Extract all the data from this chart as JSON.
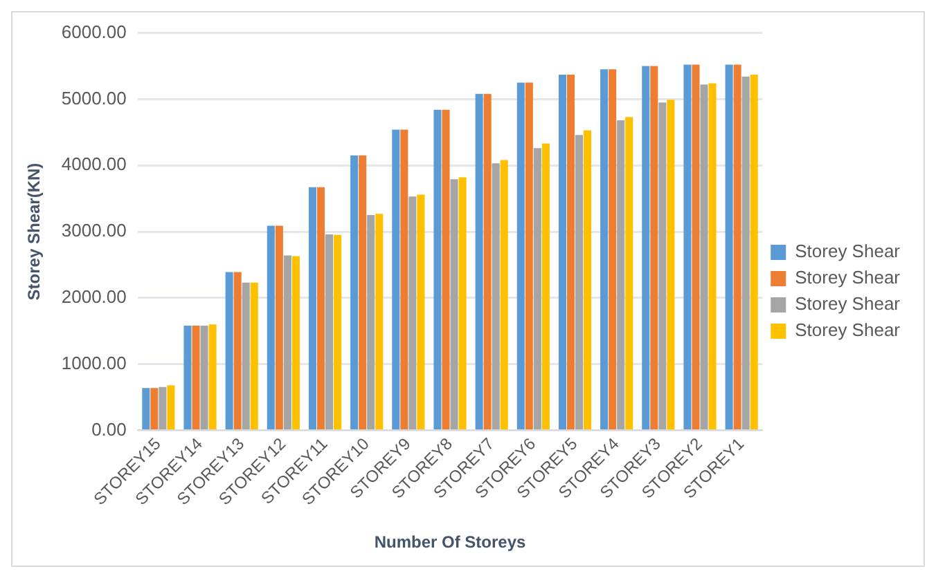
{
  "chart_data": {
    "type": "bar",
    "xlabel": "Number Of Storeys",
    "ylabel": "Storey Shear(KN)",
    "categories": [
      "STOREY15",
      "STOREY14",
      "STOREY13",
      "STOREY12",
      "STOREY11",
      "STOREY10",
      "STOREY9",
      "STOREY8",
      "STOREY7",
      "STOREY6",
      "STOREY5",
      "STOREY4",
      "STOREY3",
      "STOREY2",
      "STOREY1"
    ],
    "series": [
      {
        "name": "Storey Shear",
        "color": "#5b9bd5",
        "values": [
          640,
          1580,
          2390,
          3090,
          3670,
          4150,
          4540,
          4840,
          5080,
          5250,
          5370,
          5450,
          5500,
          5520,
          5520
        ]
      },
      {
        "name": "Storey Shear",
        "color": "#ed7d31",
        "values": [
          640,
          1580,
          2390,
          3090,
          3670,
          4150,
          4540,
          4840,
          5080,
          5250,
          5370,
          5450,
          5500,
          5520,
          5520
        ]
      },
      {
        "name": "Storey Shear",
        "color": "#a5a5a5",
        "values": [
          655,
          1580,
          2230,
          2640,
          2960,
          3250,
          3530,
          3790,
          4030,
          4260,
          4460,
          4680,
          4950,
          5220,
          5340
        ]
      },
      {
        "name": "Storey Shear",
        "color": "#ffc000",
        "values": [
          680,
          1600,
          2230,
          2630,
          2950,
          3270,
          3560,
          3820,
          4080,
          4330,
          4530,
          4730,
          4990,
          5240,
          5370
        ]
      }
    ],
    "ylim": [
      0,
      6000
    ],
    "yticks": [
      {
        "value": 0,
        "label": "0.00"
      },
      {
        "value": 1000,
        "label": "1000.00"
      },
      {
        "value": 2000,
        "label": "2000.00"
      },
      {
        "value": 3000,
        "label": "3000.00"
      },
      {
        "value": 4000,
        "label": "4000.00"
      },
      {
        "value": 5000,
        "label": "5000.00"
      },
      {
        "value": 6000,
        "label": "6000.00"
      }
    ],
    "grid": "y",
    "legend": "right"
  }
}
